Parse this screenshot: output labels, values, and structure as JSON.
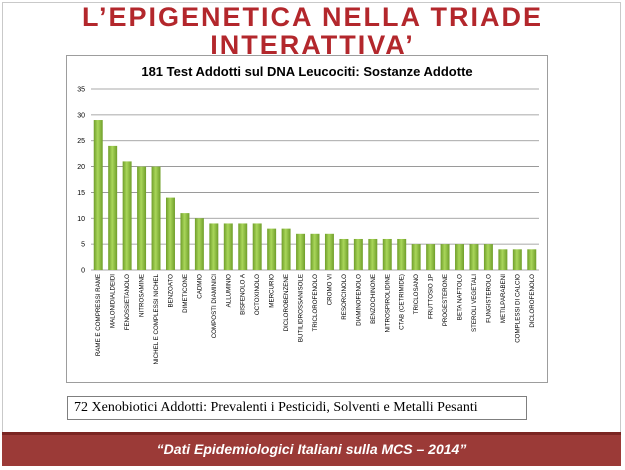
{
  "slide": {
    "title_line_1": "L’EPIGENETICA NELLA TRIADE",
    "title_line_2": "INTERATTIVA’",
    "caption": "72 Xenobiotici Addotti: Prevalenti i Pesticidi, Solventi e Metalli Pesanti",
    "footer": "“Dati Epidemiologici Italiani sulla MCS – 2014”",
    "colors": {
      "title": "#b3272c",
      "footer_bg": "#9b3a37",
      "bar": "#8dbf3f"
    }
  },
  "chart_data": {
    "type": "bar",
    "title": "181 Test Addotti sul DNA Leucociti: Sostanze Addotte",
    "xlabel": "",
    "ylabel": "",
    "ylim": [
      0,
      35
    ],
    "yticks": [
      0,
      5,
      10,
      15,
      20,
      25,
      30,
      35
    ],
    "grid": true,
    "legend": "none",
    "categories": [
      "RAME E COMPRESSI RAME",
      "MALONIDIALDEIDI",
      "FENOSSIETANOLO",
      "NITROSAMINE",
      "NICHEL E COMPLESSI NICHEL",
      "BENZOATO",
      "DIMETICONE",
      "CADMIO",
      "COMPOSTI DIAMINICI",
      "ALLUMINIO",
      "BISFENOLO A",
      "OCTOXINOLO",
      "MERCURIO",
      "DICLOROBENZENE",
      "BUTILIDROSSANISOLE",
      "TRICLOROFENOLO",
      "CROMO VI",
      "RESORCINOLO",
      "DIAMINOFENOLO",
      "BENZOCHINONE",
      "NITROSPIROLIDINE",
      "CTAB (CETRIMIDE)",
      "TRICLOSANO",
      "FRUTTOSIO 1P",
      "PROGESTERONE",
      "BETA NAFTOLO",
      "STEROLI VEGETALI",
      "FUNGISTEROLO",
      "METILPARABENI",
      "COMPLESSI DI CALCIO",
      "DICLOROFENOLO"
    ],
    "values": [
      29,
      24,
      21,
      20,
      20,
      14,
      11,
      10,
      9,
      9,
      9,
      9,
      8,
      8,
      7,
      7,
      7,
      6,
      6,
      6,
      6,
      6,
      5,
      5,
      5,
      5,
      5,
      5,
      4,
      4,
      4
    ]
  }
}
